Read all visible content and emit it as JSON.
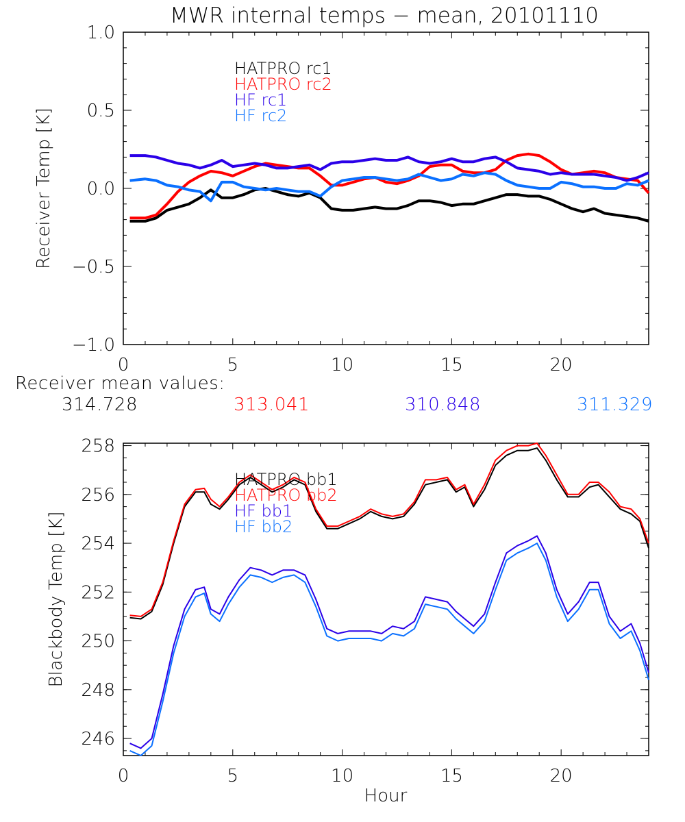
{
  "colors": {
    "hatpro1": "#000000",
    "hatpro2": "#ff0000",
    "hf1": "#2a00e8",
    "hf2": "#0a70ff",
    "axis": "#000000"
  },
  "chart_data": [
    {
      "type": "line",
      "title": "MWR internal temps - mean, 20101110",
      "xlabel": "",
      "ylabel": "Receiver Temp [K]",
      "xlim": [
        0,
        24
      ],
      "ylim": [
        -1.0,
        1.0
      ],
      "xticks": [
        "0",
        "5",
        "10",
        "15",
        "20"
      ],
      "xtick_values": [
        0,
        5,
        10,
        15,
        20
      ],
      "yticks": [
        "1.0",
        "0.5",
        "0.0",
        "-0.5",
        "-1.0"
      ],
      "ytick_values": [
        1.0,
        0.5,
        0.0,
        -0.5,
        -1.0
      ],
      "legend": [
        "HATPRO rc1",
        "HATPRO rc2",
        "HF rc1",
        "HF rc2"
      ],
      "legend_placement": "top-left-inside",
      "x": [
        0.3,
        1.0,
        1.5,
        2.0,
        2.5,
        3.0,
        3.5,
        4.0,
        4.5,
        5.0,
        5.5,
        6.0,
        6.5,
        7.0,
        7.5,
        8.0,
        8.5,
        9.0,
        9.5,
        10.0,
        10.5,
        11.0,
        11.5,
        12.0,
        12.5,
        13.0,
        13.5,
        14.0,
        14.5,
        15.0,
        15.5,
        16.0,
        16.5,
        17.0,
        17.5,
        18.0,
        18.5,
        19.0,
        19.5,
        20.0,
        20.5,
        21.0,
        21.5,
        22.0,
        22.5,
        23.0,
        23.5,
        24.0
      ],
      "series": [
        {
          "name": "HATPRO rc1",
          "color_key": "hatpro1",
          "values": [
            -0.21,
            -0.21,
            -0.19,
            -0.14,
            -0.12,
            -0.1,
            -0.06,
            -0.01,
            -0.06,
            -0.06,
            -0.04,
            -0.01,
            0.0,
            -0.02,
            -0.04,
            -0.05,
            -0.03,
            -0.06,
            -0.13,
            -0.14,
            -0.14,
            -0.13,
            -0.12,
            -0.13,
            -0.13,
            -0.11,
            -0.08,
            -0.08,
            -0.09,
            -0.11,
            -0.1,
            -0.1,
            -0.08,
            -0.06,
            -0.04,
            -0.04,
            -0.05,
            -0.05,
            -0.07,
            -0.1,
            -0.13,
            -0.15,
            -0.13,
            -0.16,
            -0.17,
            -0.18,
            -0.19,
            -0.21
          ]
        },
        {
          "name": "HATPRO rc2",
          "color_key": "hatpro2",
          "values": [
            -0.19,
            -0.19,
            -0.17,
            -0.1,
            -0.02,
            0.04,
            0.08,
            0.11,
            0.1,
            0.08,
            0.11,
            0.14,
            0.16,
            0.15,
            0.14,
            0.13,
            0.13,
            0.08,
            0.02,
            0.02,
            0.04,
            0.06,
            0.07,
            0.04,
            0.03,
            0.05,
            0.08,
            0.14,
            0.15,
            0.15,
            0.11,
            0.1,
            0.1,
            0.12,
            0.18,
            0.21,
            0.22,
            0.21,
            0.17,
            0.12,
            0.09,
            0.1,
            0.11,
            0.1,
            0.07,
            0.06,
            0.05,
            -0.03
          ]
        },
        {
          "name": "HF rc1",
          "color_key": "hf1",
          "values": [
            0.21,
            0.21,
            0.2,
            0.18,
            0.16,
            0.15,
            0.13,
            0.15,
            0.18,
            0.14,
            0.15,
            0.16,
            0.15,
            0.13,
            0.13,
            0.14,
            0.15,
            0.12,
            0.16,
            0.17,
            0.17,
            0.18,
            0.19,
            0.18,
            0.18,
            0.2,
            0.17,
            0.16,
            0.17,
            0.19,
            0.17,
            0.17,
            0.19,
            0.2,
            0.17,
            0.13,
            0.12,
            0.11,
            0.09,
            0.1,
            0.09,
            0.09,
            0.09,
            0.08,
            0.07,
            0.05,
            0.07,
            0.1
          ]
        },
        {
          "name": "HF rc2",
          "color_key": "hf2",
          "values": [
            0.05,
            0.06,
            0.05,
            0.02,
            0.01,
            -0.01,
            -0.02,
            -0.08,
            0.04,
            0.04,
            0.01,
            0.0,
            -0.01,
            0.0,
            -0.01,
            -0.02,
            -0.02,
            -0.05,
            0.01,
            0.05,
            0.06,
            0.07,
            0.07,
            0.06,
            0.05,
            0.06,
            0.09,
            0.07,
            0.05,
            0.06,
            0.09,
            0.08,
            0.1,
            0.09,
            0.05,
            0.02,
            0.01,
            0.0,
            0.0,
            0.04,
            0.03,
            0.01,
            0.01,
            0.0,
            0.0,
            0.03,
            0.02,
            0.05
          ]
        }
      ]
    },
    {
      "type": "line",
      "title": "",
      "xlabel": "Hour",
      "ylabel": "Blackbody Temp [K]",
      "xlim": [
        0,
        24
      ],
      "ylim": [
        245.3,
        258.1
      ],
      "xticks": [
        "0",
        "5",
        "10",
        "15",
        "20"
      ],
      "xtick_values": [
        0,
        5,
        10,
        15,
        20
      ],
      "yticks": [
        "258",
        "256",
        "254",
        "252",
        "250",
        "248",
        "246"
      ],
      "ytick_values": [
        258,
        256,
        254,
        252,
        250,
        248,
        246
      ],
      "legend": [
        "HATPRO bb1",
        "HATPRO bb2",
        "HF bb1",
        "HF bb2"
      ],
      "legend_placement": "top-left-inside",
      "x": [
        0.3,
        0.8,
        1.3,
        1.8,
        2.3,
        2.8,
        3.3,
        3.7,
        4.0,
        4.4,
        4.8,
        5.3,
        5.8,
        6.3,
        6.8,
        7.3,
        7.8,
        8.3,
        8.8,
        9.3,
        9.8,
        10.3,
        10.8,
        11.3,
        11.8,
        12.3,
        12.8,
        13.3,
        13.8,
        14.3,
        14.8,
        15.2,
        15.6,
        16.0,
        16.5,
        17.0,
        17.5,
        18.0,
        18.5,
        18.9,
        19.3,
        19.8,
        20.3,
        20.8,
        21.3,
        21.7,
        22.2,
        22.7,
        23.2,
        23.6,
        24.0
      ],
      "series": [
        {
          "name": "HATPRO bb1",
          "color_key": "hatpro1",
          "values": [
            250.95,
            250.9,
            251.2,
            252.3,
            254.0,
            255.5,
            256.1,
            256.1,
            255.6,
            255.4,
            255.8,
            256.4,
            256.7,
            256.4,
            256.1,
            256.3,
            256.6,
            256.4,
            255.3,
            254.6,
            254.6,
            254.8,
            255.0,
            255.3,
            255.1,
            255.0,
            255.1,
            255.6,
            256.4,
            256.5,
            256.6,
            256.1,
            256.3,
            255.5,
            256.2,
            257.2,
            257.6,
            257.8,
            257.8,
            257.9,
            257.4,
            256.6,
            255.9,
            255.9,
            256.3,
            256.4,
            255.9,
            255.4,
            255.2,
            254.9,
            253.8
          ]
        },
        {
          "name": "HATPRO bb2",
          "color_key": "hatpro2",
          "values": [
            251.05,
            251.0,
            251.3,
            252.4,
            254.1,
            255.6,
            256.2,
            256.25,
            255.8,
            255.5,
            255.9,
            256.5,
            256.8,
            256.5,
            256.2,
            256.4,
            256.7,
            256.5,
            255.4,
            254.7,
            254.7,
            254.9,
            255.1,
            255.4,
            255.2,
            255.1,
            255.2,
            255.7,
            256.6,
            256.6,
            256.7,
            256.2,
            256.4,
            255.6,
            256.4,
            257.4,
            257.8,
            258.0,
            258.0,
            258.1,
            257.6,
            256.8,
            256.0,
            256.0,
            256.5,
            256.5,
            256.1,
            255.5,
            255.4,
            255.0,
            254.0
          ]
        },
        {
          "name": "HF bb1",
          "color_key": "hf1",
          "values": [
            245.8,
            245.6,
            246.0,
            247.8,
            249.8,
            251.3,
            252.1,
            252.2,
            251.3,
            251.1,
            251.8,
            252.5,
            253.0,
            252.9,
            252.7,
            252.9,
            252.9,
            252.7,
            251.7,
            250.5,
            250.3,
            250.4,
            250.4,
            250.4,
            250.3,
            250.6,
            250.5,
            250.8,
            251.8,
            251.7,
            251.6,
            251.2,
            250.9,
            250.6,
            251.1,
            252.4,
            253.6,
            253.9,
            254.1,
            254.3,
            253.6,
            252.1,
            251.1,
            251.6,
            252.4,
            252.4,
            251.0,
            250.4,
            250.7,
            249.9,
            248.7
          ]
        },
        {
          "name": "HF bb2",
          "color_key": "hf2",
          "values": [
            245.5,
            245.3,
            245.7,
            247.5,
            249.5,
            251.0,
            251.8,
            251.95,
            251.1,
            250.8,
            251.5,
            252.2,
            252.7,
            252.6,
            252.4,
            252.6,
            252.7,
            252.4,
            251.4,
            250.2,
            250.0,
            250.1,
            250.1,
            250.1,
            250.0,
            250.3,
            250.2,
            250.5,
            251.5,
            251.4,
            251.3,
            250.9,
            250.6,
            250.3,
            250.8,
            252.1,
            253.3,
            253.6,
            253.8,
            254.0,
            253.3,
            251.8,
            250.8,
            251.3,
            252.1,
            252.1,
            250.7,
            250.1,
            250.4,
            249.6,
            248.4
          ]
        }
      ]
    }
  ],
  "mean_values": {
    "label": "Receiver mean values:",
    "values": [
      {
        "text": "314.728",
        "color_key": "hatpro1"
      },
      {
        "text": "313.041",
        "color_key": "hatpro2"
      },
      {
        "text": "310.848",
        "color_key": "hf1"
      },
      {
        "text": "311.329",
        "color_key": "hf2"
      }
    ]
  }
}
